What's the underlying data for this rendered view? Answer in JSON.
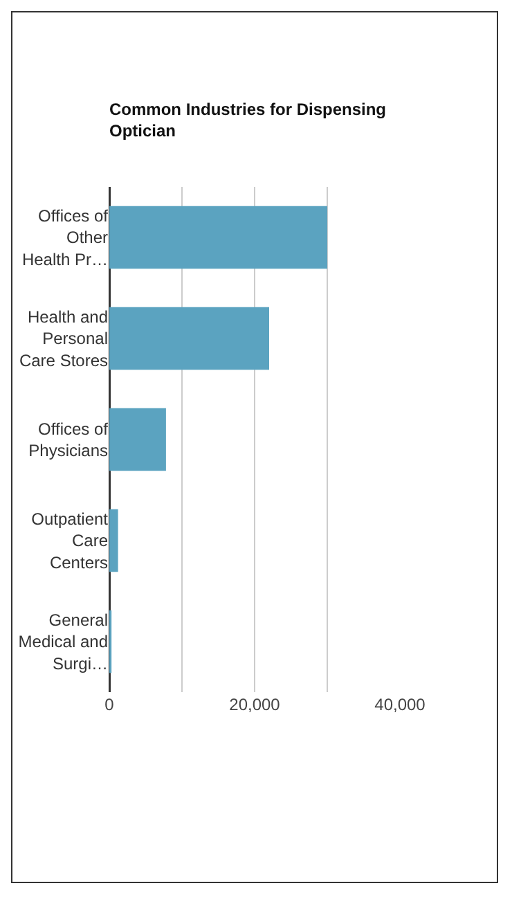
{
  "chart_data": {
    "type": "bar",
    "orientation": "horizontal",
    "title": "Common Industries for Dispensing Optician",
    "categories": [
      "Offices of Other Health Pr…",
      "Health and Personal Care Stores",
      "Offices of Physicians",
      "Outpatient Care Centers",
      "General Medical and Surgi…"
    ],
    "values": [
      30000,
      22000,
      7800,
      1200,
      300
    ],
    "color": "#5ba3c0",
    "xlim": [
      0,
      40000
    ],
    "xticks": [
      0,
      {
        "value": 10000,
        "label": null
      },
      {
        "value": 20000,
        "label": "20,000"
      },
      {
        "value": 30000,
        "label": null
      },
      {
        "value": 40000,
        "label": "40,000"
      }
    ],
    "grid": "x"
  }
}
